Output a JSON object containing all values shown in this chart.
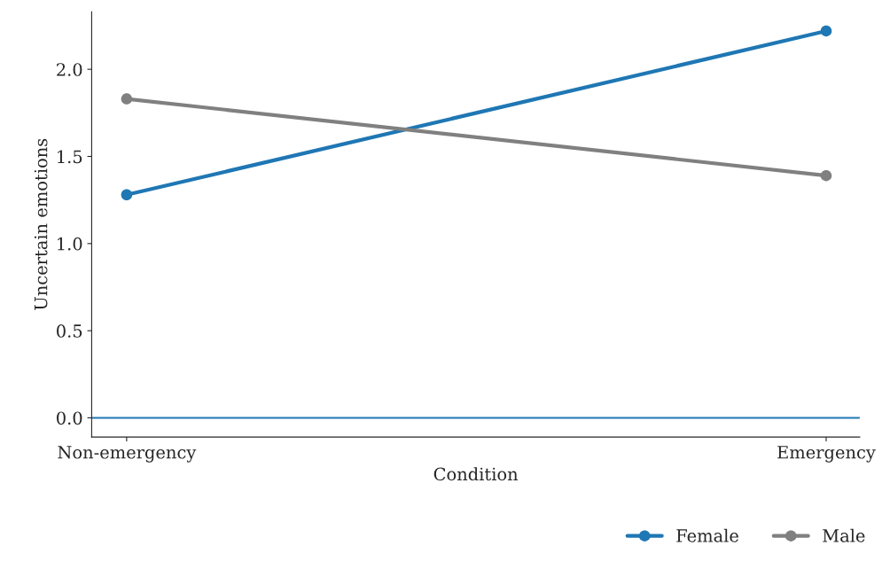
{
  "chart_data": {
    "type": "line",
    "xlabel": "Condition",
    "ylabel": "Uncertain emotions",
    "categories": [
      "Non-emergency",
      "Emergency"
    ],
    "series": [
      {
        "name": "Female",
        "color": "#1f77b4",
        "values": [
          1.28,
          2.22
        ]
      },
      {
        "name": "Male",
        "color": "#808080",
        "values": [
          1.83,
          1.39
        ]
      }
    ],
    "ylim": [
      -0.11,
      2.33
    ],
    "yticks": [
      {
        "value": 0,
        "label": "0.0"
      },
      0.5,
      {
        "value": 1,
        "label": "1.0"
      },
      1.5,
      {
        "value": 2,
        "label": "2.0"
      }
    ],
    "ref_lines": [
      {
        "axis": "y",
        "value": 0,
        "color": "#1f77b4",
        "line_style": "solid"
      }
    ],
    "marker": "circle",
    "line_style": "solid",
    "legend": "bottom right",
    "grid": false
  }
}
